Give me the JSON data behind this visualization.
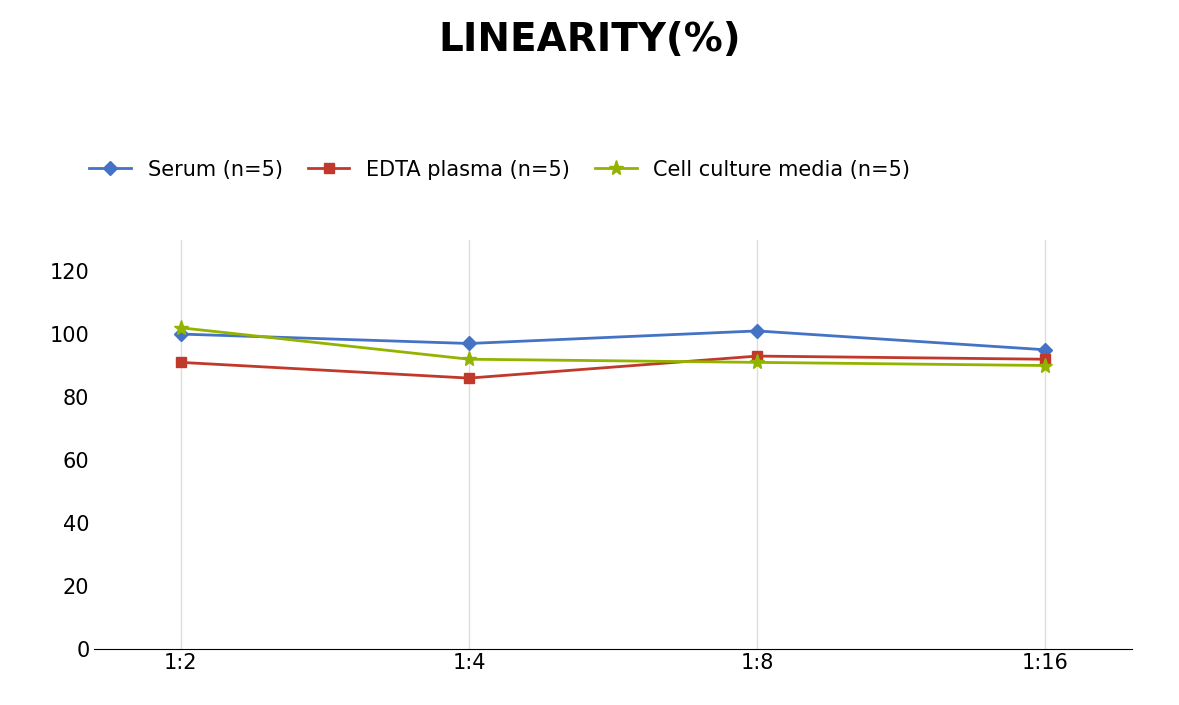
{
  "title": "LINEARITY(%)",
  "x_labels": [
    "1:2",
    "1:4",
    "1:8",
    "1:16"
  ],
  "x_positions": [
    0,
    1,
    2,
    3
  ],
  "series": [
    {
      "label": "Serum (n=5)",
      "values": [
        100,
        97,
        101,
        95
      ],
      "color": "#4472C4",
      "marker": "D",
      "marker_size": 7,
      "linewidth": 2
    },
    {
      "label": "EDTA plasma (n=5)",
      "values": [
        91,
        86,
        93,
        92
      ],
      "color": "#C0392B",
      "marker": "s",
      "marker_size": 7,
      "linewidth": 2
    },
    {
      "label": "Cell culture media (n=5)",
      "values": [
        102,
        92,
        91,
        90
      ],
      "color": "#92B400",
      "marker": "*",
      "marker_size": 11,
      "linewidth": 2
    }
  ],
  "ylim": [
    0,
    130
  ],
  "yticks": [
    0,
    20,
    40,
    60,
    80,
    100,
    120
  ],
  "grid_color": "#DDDDDD",
  "background_color": "#FFFFFF",
  "title_fontsize": 28,
  "tick_fontsize": 15,
  "legend_fontsize": 15
}
